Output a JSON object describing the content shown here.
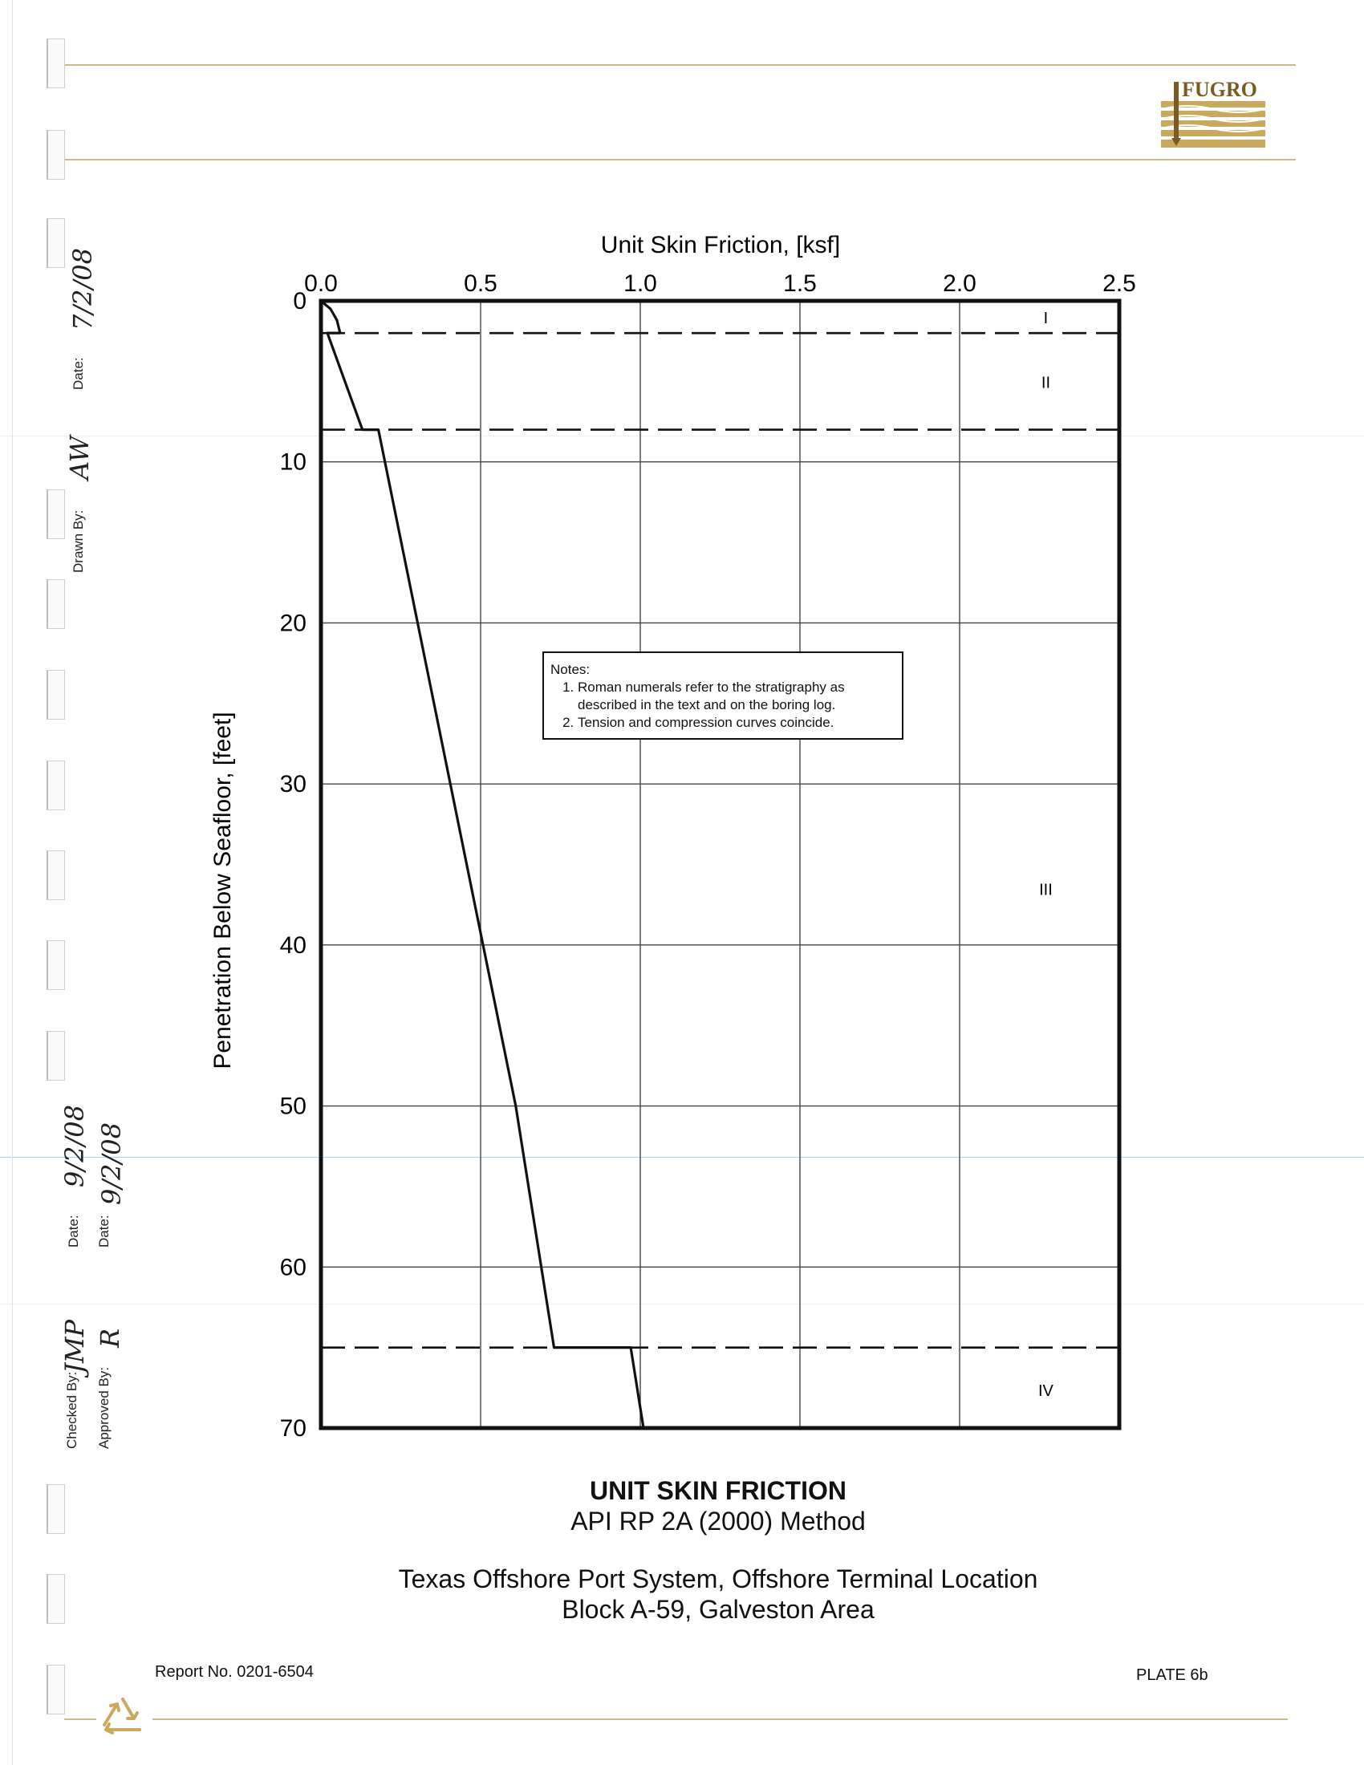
{
  "header": {
    "logo_text": "FUGRO",
    "logo_color": "#c9a860"
  },
  "sidebar": {
    "date_label_1": "Date:",
    "date_value_1": "7/2/08",
    "drawn_by_label": "Drawn By:",
    "drawn_by_value": "AW",
    "date_label_2": "Date:",
    "date_value_2": "9/2/08",
    "checked_by_label": "Checked By:",
    "checked_by_value": "JMP",
    "date_label_3": "Date:",
    "date_value_3": "9/2/08",
    "approved_by_label": "Approved By:",
    "approved_by_value": "R"
  },
  "chart_data": {
    "type": "line",
    "xlabel": "Unit Skin Friction, [ksf]",
    "ylabel": "Penetration Below Seafloor, [feet]",
    "xlim": [
      0,
      2.5
    ],
    "ylim": [
      0,
      70
    ],
    "y_inverted": true,
    "x_ticks": [
      "0.0",
      "0.5",
      "1.0",
      "1.5",
      "2.0",
      "2.5"
    ],
    "x_tick_values": [
      0,
      0.5,
      1.0,
      1.5,
      2.0,
      2.5
    ],
    "y_ticks": [
      "0",
      "10",
      "20",
      "30",
      "40",
      "50",
      "60",
      "70"
    ],
    "y_tick_values": [
      0,
      10,
      20,
      30,
      40,
      50,
      60,
      70
    ],
    "grid": true,
    "series": [
      {
        "x": [
          0,
          0.03,
          0.05,
          0.06,
          0.02,
          0.13,
          0.18,
          0.61,
          0.73,
          0.97,
          1.01
        ],
        "y": [
          0,
          0.5,
          1.2,
          2.0,
          2.0,
          8.0,
          8.0,
          50,
          65,
          65,
          70
        ]
      }
    ],
    "layer_boundaries": [
      2.0,
      8.0,
      65.0
    ],
    "layers": [
      {
        "label": "I",
        "depth": 1.0
      },
      {
        "label": "II",
        "depth": 5.0
      },
      {
        "label": "III",
        "depth": 36.5
      },
      {
        "label": "IV",
        "depth": 67.6
      }
    ],
    "notes": {
      "title": "Notes:",
      "items": [
        "Roman numerals refer to the stratigraphy as described in the text and on the boring log.",
        "Tension and compression curves coincide."
      ]
    }
  },
  "caption": {
    "title": "UNIT SKIN FRICTION",
    "method": "API RP 2A (2000) Method",
    "project_line1": "Texas Offshore Port System, Offshore Terminal Location",
    "project_line2": "Block A-59, Galveston Area"
  },
  "footer": {
    "report_no": "Report No. 0201-6504",
    "plate": "PLATE 6b"
  }
}
